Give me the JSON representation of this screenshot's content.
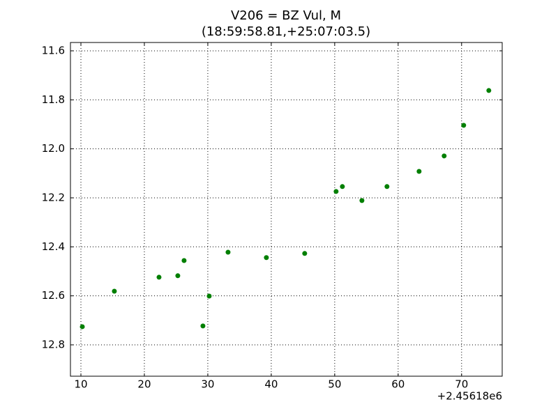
{
  "chart_data": {
    "type": "scatter",
    "title": "V206 = BZ Vul, M",
    "subtitle": "(18:59:58.81,+25:07:03.5)",
    "x_offset_label": "+2.45618e6",
    "x": [
      10.22,
      15.27,
      22.31,
      25.27,
      26.26,
      29.23,
      30.22,
      33.19,
      39.23,
      45.27,
      50.22,
      51.21,
      54.29,
      58.24,
      63.3,
      67.25,
      70.33,
      74.29
    ],
    "values": [
      12.726,
      12.581,
      12.524,
      12.518,
      12.456,
      12.723,
      12.601,
      12.422,
      12.444,
      12.427,
      12.174,
      12.154,
      12.211,
      12.154,
      12.092,
      12.029,
      11.904,
      11.762
    ],
    "color": "#007f00",
    "xlim": [
      8.35,
      76.4
    ],
    "xticks": [
      10,
      20,
      30,
      40,
      50,
      60,
      70
    ],
    "ylim": [
      12.928,
      11.566
    ],
    "yticks": [
      11.6,
      11.8,
      {
        "value": 12.0,
        "label": "12.0"
      },
      12.2,
      12.4,
      12.6,
      12.8
    ],
    "grid": true
  }
}
